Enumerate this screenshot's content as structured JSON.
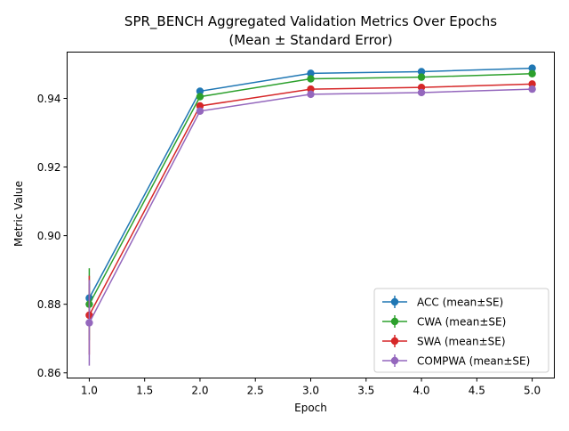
{
  "chart_data": {
    "type": "line",
    "title": "SPR_BENCH Aggregated Validation Metrics Over Epochs",
    "subtitle": "(Mean ± Standard Error)",
    "xlabel": "Epoch",
    "ylabel": "Metric Value",
    "xlim": [
      0.8,
      5.2
    ],
    "ylim": [
      0.8585,
      0.9535
    ],
    "xticks": [
      "1.0",
      "1.5",
      "2.0",
      "2.5",
      "3.0",
      "3.5",
      "4.0",
      "4.5",
      "5.0"
    ],
    "yticks": [
      "0.86",
      "0.88",
      "0.90",
      "0.92",
      "0.94"
    ],
    "grid": false,
    "legend_position": "lower-right",
    "x": [
      1,
      2,
      3,
      4,
      5
    ],
    "series": [
      {
        "name": "ACC (mean±SE)",
        "color": "#1f77b4",
        "values": [
          0.8818,
          0.9421,
          0.9473,
          0.9478,
          0.9488
        ],
        "errors": [
          0.0042,
          0.0005,
          0.0005,
          0.0005,
          0.0005
        ]
      },
      {
        "name": "CWA (mean±SE)",
        "color": "#2ca02c",
        "values": [
          0.88,
          0.9405,
          0.9457,
          0.9462,
          0.9472
        ],
        "errors": [
          0.0105,
          0.0005,
          0.0005,
          0.0005,
          0.0005
        ]
      },
      {
        "name": "SWA (mean±SE)",
        "color": "#d62728",
        "values": [
          0.8768,
          0.9378,
          0.9427,
          0.9432,
          0.9442
        ],
        "errors": [
          0.0115,
          0.0005,
          0.0005,
          0.0005,
          0.0005
        ]
      },
      {
        "name": "COMPWA (mean±SE)",
        "color": "#9467bd",
        "values": [
          0.8746,
          0.9363,
          0.9412,
          0.9417,
          0.9427
        ],
        "errors": [
          0.0125,
          0.0005,
          0.0005,
          0.0005,
          0.0005
        ]
      }
    ]
  }
}
